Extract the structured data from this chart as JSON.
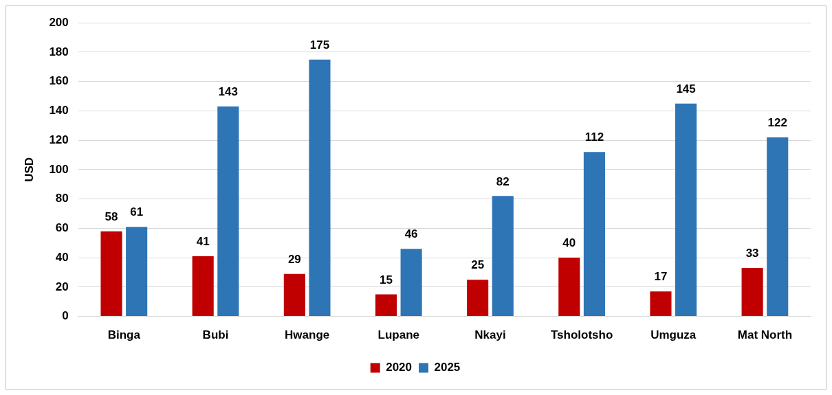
{
  "chart_data": {
    "type": "bar",
    "ylabel": "USD",
    "categories": [
      "Binga",
      "Bubi",
      "Hwange",
      "Lupane",
      "Nkayi",
      "Tsholotsho",
      "Umguza",
      "Mat North"
    ],
    "series": [
      {
        "name": "2020",
        "color": "#c00000",
        "values": [
          58,
          41,
          29,
          15,
          25,
          40,
          17,
          33
        ]
      },
      {
        "name": "2025",
        "color": "#2e75b6",
        "values": [
          61,
          143,
          175,
          46,
          82,
          112,
          145,
          122
        ]
      }
    ],
    "ylim": [
      0,
      200
    ],
    "yticks": [
      0,
      20,
      40,
      60,
      80,
      100,
      120,
      140,
      160,
      180,
      200
    ],
    "grid": "y",
    "legend": "bottom",
    "data_labels": true
  }
}
